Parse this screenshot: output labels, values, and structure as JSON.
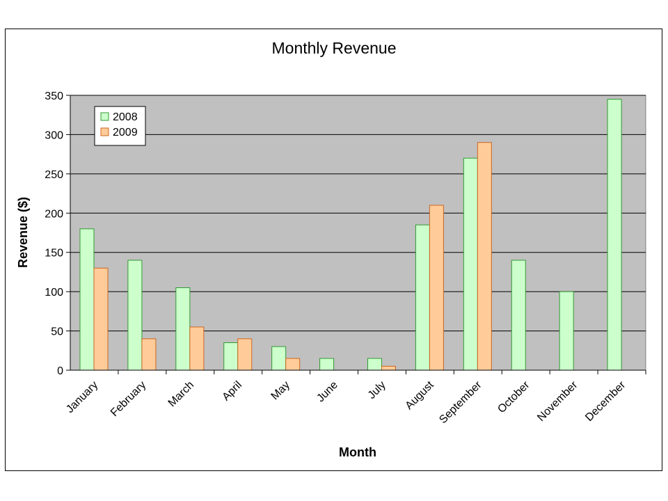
{
  "chart_data": {
    "type": "bar",
    "title": "Monthly Revenue",
    "xlabel": "Month",
    "ylabel": "Revenue ($)",
    "categories": [
      "January",
      "February",
      "March",
      "April",
      "May",
      "June",
      "July",
      "August",
      "September",
      "October",
      "November",
      "December"
    ],
    "series": [
      {
        "name": "2008",
        "values": [
          180,
          140,
          105,
          35,
          30,
          15,
          15,
          185,
          270,
          140,
          100,
          345
        ],
        "color": "#ccffcc",
        "stroke": "#339933"
      },
      {
        "name": "2009",
        "values": [
          130,
          40,
          55,
          40,
          15,
          0,
          5,
          210,
          290,
          0,
          0,
          0
        ],
        "color": "#ffcc99",
        "stroke": "#cc6622"
      }
    ],
    "ylim": [
      0,
      350
    ],
    "yticks": [
      0,
      50,
      100,
      150,
      200,
      250,
      300,
      350
    ],
    "grid": true,
    "legend_position": "top-left",
    "plot_background": "#c0c0c0"
  }
}
